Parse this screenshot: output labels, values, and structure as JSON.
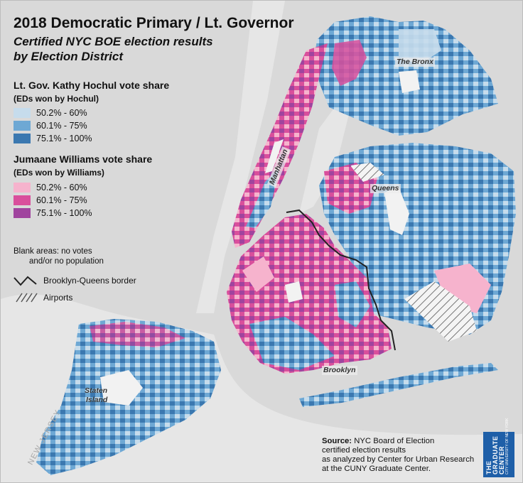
{
  "title": "2018 Democratic Primary / Lt. Governor",
  "subtitle_line1": "Certified NYC BOE election results",
  "subtitle_line2": "by Election District",
  "legend": {
    "hochul_heading": "Lt. Gov. Kathy Hochul vote share",
    "hochul_sub": "(EDs won by Hochul)",
    "hochul_items": [
      {
        "label": "50.2% - 60%",
        "color": "#c6dcec"
      },
      {
        "label": "60.1% - 75%",
        "color": "#6ea8d4"
      },
      {
        "label": "75.1% - 100%",
        "color": "#3b78b0"
      }
    ],
    "williams_heading": "Jumaane Williams vote share",
    "williams_sub": "(EDs won by Williams)",
    "williams_items": [
      {
        "label": "50.2% - 60%",
        "color": "#f6b3cd"
      },
      {
        "label": "60.1% - 75%",
        "color": "#d94f9c"
      },
      {
        "label": "75.1% - 100%",
        "color": "#a0449e"
      }
    ],
    "blank_note_1": "Blank areas: no votes",
    "blank_note_2": "and/or no population",
    "border_label": "Brooklyn-Queens border",
    "airports_label": "Airports"
  },
  "map_labels": {
    "bronx": "The Bronx",
    "manhattan": "Manhattan",
    "queens": "Queens",
    "brooklyn": "Brooklyn",
    "staten_island_1": "Staten",
    "staten_island_2": "Island",
    "new_jersey": "NEW JERSEY"
  },
  "source": {
    "label": "Source:",
    "line1": "NYC Board of Election",
    "line2": "certified election results",
    "line3": "as analyzed by Center for Urban Research",
    "line4": "at the CUNY Graduate Center."
  },
  "logo": {
    "line1": "THE",
    "line2": "GRADUATE",
    "line3": "CENTER",
    "small": "CITY UNIVERSITY OF NEW YORK"
  },
  "colors": {
    "background": "#d9d9d9",
    "water": "#e8e8e8",
    "hochul_light": "#c6dcec",
    "hochul_mid": "#6ea8d4",
    "hochul_dark": "#3b78b0",
    "williams_light": "#f6b3cd",
    "williams_mid": "#d94f9c",
    "williams_dark": "#a0449e"
  }
}
